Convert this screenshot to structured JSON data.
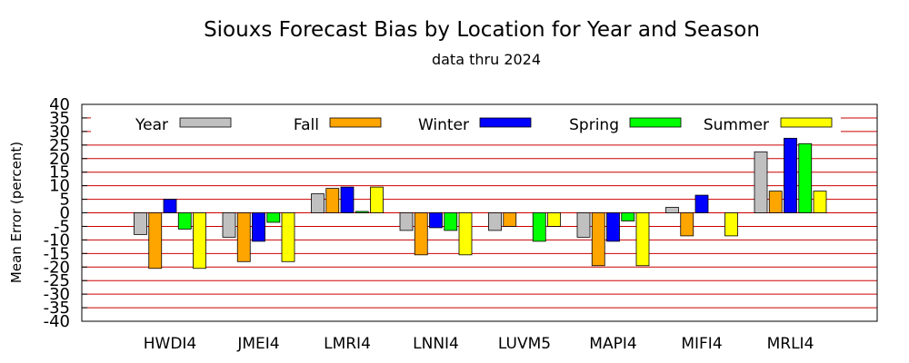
{
  "chart_data": {
    "type": "bar",
    "title": "Siouxs Forecast Bias by Location for Year and Season",
    "subtitle": "data thru 2024",
    "ylabel": "Mean Error (percent)",
    "xlabel": "",
    "ylim": [
      -40,
      40
    ],
    "yticks": [
      40,
      35,
      30,
      25,
      20,
      15,
      10,
      5,
      0,
      -5,
      -10,
      -15,
      -20,
      -25,
      -30,
      -35,
      -40
    ],
    "grid": true,
    "grid_color": "#cc0000",
    "legend_position": "top",
    "categories": [
      "HWDI4",
      "JMEI4",
      "LMRI4",
      "LNNI4",
      "LUVM5",
      "MAPI4",
      "MIFI4",
      "MRLI4"
    ],
    "series": [
      {
        "name": "Year",
        "color": "#c0c0c0",
        "values": [
          -8,
          -9,
          7,
          -6.5,
          -6.5,
          -9,
          2,
          22.5
        ]
      },
      {
        "name": "Fall",
        "color": "#ffa500",
        "values": [
          -20.5,
          -18,
          9,
          -15.5,
          -5,
          -19.5,
          -8.5,
          8
        ]
      },
      {
        "name": "Winter",
        "color": "#0000ff",
        "values": [
          5,
          -10.5,
          9.5,
          -5.5,
          0,
          -10.5,
          6.5,
          27.5
        ]
      },
      {
        "name": "Spring",
        "color": "#00ff00",
        "values": [
          -6,
          -3.5,
          0.5,
          -6.5,
          -10.5,
          -3,
          0,
          25.5
        ]
      },
      {
        "name": "Summer",
        "color": "#ffff00",
        "values": [
          -20.5,
          -18,
          9.5,
          -15.5,
          -5,
          -19.5,
          -8.5,
          8
        ]
      }
    ]
  }
}
